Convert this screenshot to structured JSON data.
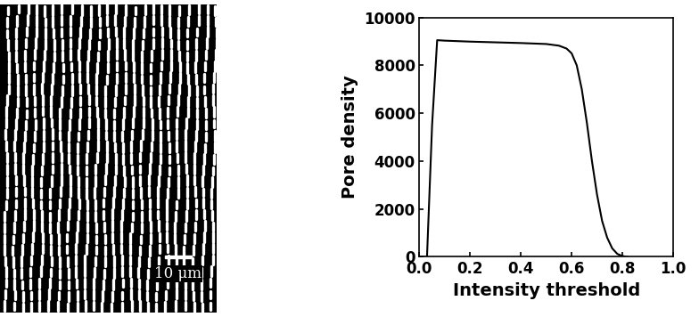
{
  "image": {
    "scale_bar": {
      "label": "10 μm"
    }
  },
  "chart_data": {
    "type": "line",
    "x_label": "Intensity threshold",
    "y_label": "Pore density",
    "x": [
      0.0,
      0.02,
      0.03,
      0.05,
      0.07,
      0.1,
      0.2,
      0.3,
      0.4,
      0.5,
      0.55,
      0.58,
      0.6,
      0.62,
      0.64,
      0.66,
      0.68,
      0.7,
      0.72,
      0.74,
      0.76,
      0.78,
      0.8,
      0.82
    ],
    "values": [
      0,
      0,
      0,
      5500,
      9050,
      9030,
      8990,
      8960,
      8930,
      8890,
      8820,
      8700,
      8500,
      8000,
      7000,
      5600,
      4000,
      2600,
      1500,
      800,
      350,
      120,
      30,
      0
    ],
    "color": "#000000",
    "xlim": [
      0.0,
      1.0
    ],
    "xticks": [
      0.0,
      0.2,
      0.4,
      0.6,
      0.8,
      1.0
    ],
    "ylim": [
      0,
      10000
    ],
    "yticks": [
      0,
      2000,
      4000,
      6000,
      8000,
      10000
    ],
    "grid": false
  }
}
